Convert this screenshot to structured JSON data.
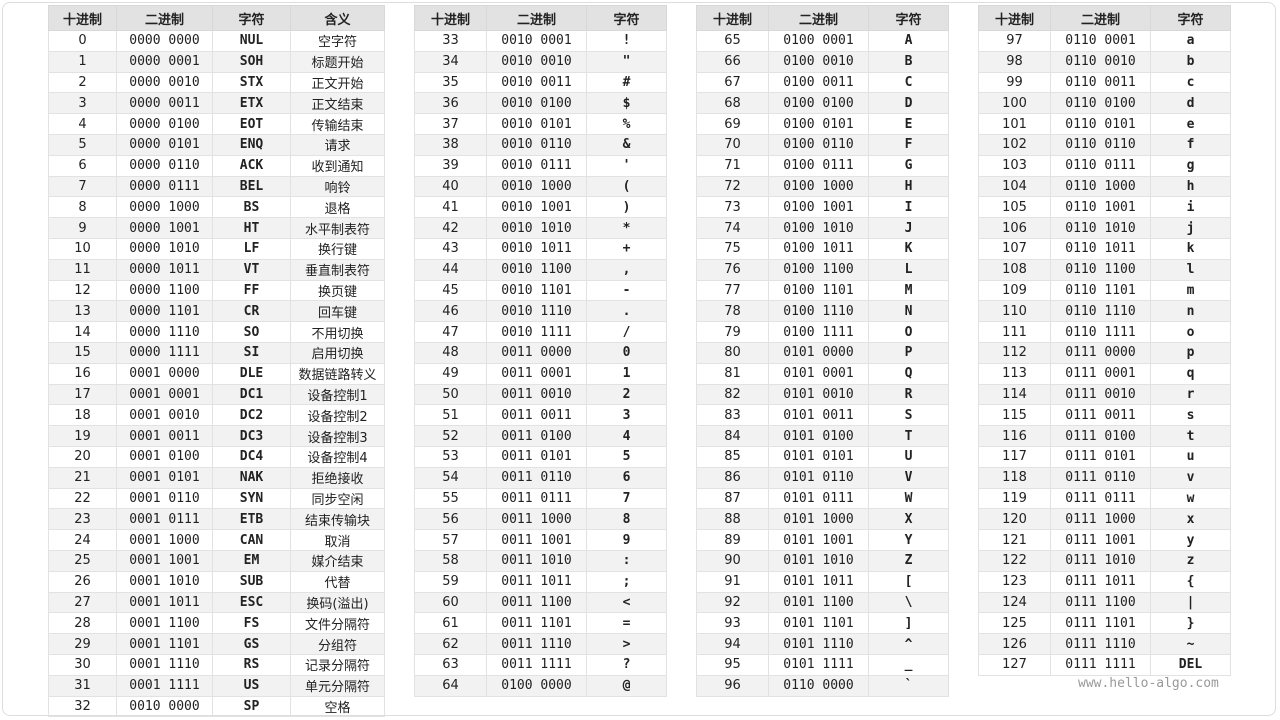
{
  "tables": [
    {
      "headers": [
        "十进制",
        "二进制",
        "字符",
        "含义"
      ],
      "rows": [
        [
          0,
          "0000 0000",
          "NUL",
          "空字符"
        ],
        [
          1,
          "0000 0001",
          "SOH",
          "标题开始"
        ],
        [
          2,
          "0000 0010",
          "STX",
          "正文开始"
        ],
        [
          3,
          "0000 0011",
          "ETX",
          "正文结束"
        ],
        [
          4,
          "0000 0100",
          "EOT",
          "传输结束"
        ],
        [
          5,
          "0000 0101",
          "ENQ",
          "请求"
        ],
        [
          6,
          "0000 0110",
          "ACK",
          "收到通知"
        ],
        [
          7,
          "0000 0111",
          "BEL",
          "响铃"
        ],
        [
          8,
          "0000 1000",
          "BS",
          "退格"
        ],
        [
          9,
          "0000 1001",
          "HT",
          "水平制表符"
        ],
        [
          10,
          "0000 1010",
          "LF",
          "换行键"
        ],
        [
          11,
          "0000 1011",
          "VT",
          "垂直制表符"
        ],
        [
          12,
          "0000 1100",
          "FF",
          "换页键"
        ],
        [
          13,
          "0000 1101",
          "CR",
          "回车键"
        ],
        [
          14,
          "0000 1110",
          "SO",
          "不用切换"
        ],
        [
          15,
          "0000 1111",
          "SI",
          "启用切换"
        ],
        [
          16,
          "0001 0000",
          "DLE",
          "数据链路转义"
        ],
        [
          17,
          "0001 0001",
          "DC1",
          "设备控制1"
        ],
        [
          18,
          "0001 0010",
          "DC2",
          "设备控制2"
        ],
        [
          19,
          "0001 0011",
          "DC3",
          "设备控制3"
        ],
        [
          20,
          "0001 0100",
          "DC4",
          "设备控制4"
        ],
        [
          21,
          "0001 0101",
          "NAK",
          "拒绝接收"
        ],
        [
          22,
          "0001 0110",
          "SYN",
          "同步空闲"
        ],
        [
          23,
          "0001 0111",
          "ETB",
          "结束传输块"
        ],
        [
          24,
          "0001 1000",
          "CAN",
          "取消"
        ],
        [
          25,
          "0001 1001",
          "EM",
          "媒介结束"
        ],
        [
          26,
          "0001 1010",
          "SUB",
          "代替"
        ],
        [
          27,
          "0001 1011",
          "ESC",
          "换码(溢出)"
        ],
        [
          28,
          "0001 1100",
          "FS",
          "文件分隔符"
        ],
        [
          29,
          "0001 1101",
          "GS",
          "分组符"
        ],
        [
          30,
          "0001 1110",
          "RS",
          "记录分隔符"
        ],
        [
          31,
          "0001 1111",
          "US",
          "单元分隔符"
        ],
        [
          32,
          "0010 0000",
          "SP",
          "空格"
        ]
      ]
    },
    {
      "headers": [
        "十进制",
        "二进制",
        "字符"
      ],
      "rows": [
        [
          33,
          "0010 0001",
          "!"
        ],
        [
          34,
          "0010 0010",
          "\""
        ],
        [
          35,
          "0010 0011",
          "#"
        ],
        [
          36,
          "0010 0100",
          "$"
        ],
        [
          37,
          "0010 0101",
          "%"
        ],
        [
          38,
          "0010 0110",
          "&"
        ],
        [
          39,
          "0010 0111",
          "'"
        ],
        [
          40,
          "0010 1000",
          "("
        ],
        [
          41,
          "0010 1001",
          ")"
        ],
        [
          42,
          "0010 1010",
          "*"
        ],
        [
          43,
          "0010 1011",
          "+"
        ],
        [
          44,
          "0010 1100",
          ","
        ],
        [
          45,
          "0010 1101",
          "-"
        ],
        [
          46,
          "0010 1110",
          "."
        ],
        [
          47,
          "0010 1111",
          "/"
        ],
        [
          48,
          "0011 0000",
          "0"
        ],
        [
          49,
          "0011 0001",
          "1"
        ],
        [
          50,
          "0011 0010",
          "2"
        ],
        [
          51,
          "0011 0011",
          "3"
        ],
        [
          52,
          "0011 0100",
          "4"
        ],
        [
          53,
          "0011 0101",
          "5"
        ],
        [
          54,
          "0011 0110",
          "6"
        ],
        [
          55,
          "0011 0111",
          "7"
        ],
        [
          56,
          "0011 1000",
          "8"
        ],
        [
          57,
          "0011 1001",
          "9"
        ],
        [
          58,
          "0011 1010",
          ":"
        ],
        [
          59,
          "0011 1011",
          ";"
        ],
        [
          60,
          "0011 1100",
          "<"
        ],
        [
          61,
          "0011 1101",
          "="
        ],
        [
          62,
          "0011 1110",
          ">"
        ],
        [
          63,
          "0011 1111",
          "?"
        ],
        [
          64,
          "0100 0000",
          "@"
        ]
      ]
    },
    {
      "headers": [
        "十进制",
        "二进制",
        "字符"
      ],
      "rows": [
        [
          65,
          "0100 0001",
          "A"
        ],
        [
          66,
          "0100 0010",
          "B"
        ],
        [
          67,
          "0100 0011",
          "C"
        ],
        [
          68,
          "0100 0100",
          "D"
        ],
        [
          69,
          "0100 0101",
          "E"
        ],
        [
          70,
          "0100 0110",
          "F"
        ],
        [
          71,
          "0100 0111",
          "G"
        ],
        [
          72,
          "0100 1000",
          "H"
        ],
        [
          73,
          "0100 1001",
          "I"
        ],
        [
          74,
          "0100 1010",
          "J"
        ],
        [
          75,
          "0100 1011",
          "K"
        ],
        [
          76,
          "0100 1100",
          "L"
        ],
        [
          77,
          "0100 1101",
          "M"
        ],
        [
          78,
          "0100 1110",
          "N"
        ],
        [
          79,
          "0100 1111",
          "O"
        ],
        [
          80,
          "0101 0000",
          "P"
        ],
        [
          81,
          "0101 0001",
          "Q"
        ],
        [
          82,
          "0101 0010",
          "R"
        ],
        [
          83,
          "0101 0011",
          "S"
        ],
        [
          84,
          "0101 0100",
          "T"
        ],
        [
          85,
          "0101 0101",
          "U"
        ],
        [
          86,
          "0101 0110",
          "V"
        ],
        [
          87,
          "0101 0111",
          "W"
        ],
        [
          88,
          "0101 1000",
          "X"
        ],
        [
          89,
          "0101 1001",
          "Y"
        ],
        [
          90,
          "0101 1010",
          "Z"
        ],
        [
          91,
          "0101 1011",
          "["
        ],
        [
          92,
          "0101 1100",
          "\\"
        ],
        [
          93,
          "0101 1101",
          "]"
        ],
        [
          94,
          "0101 1110",
          "^"
        ],
        [
          95,
          "0101 1111",
          "_"
        ],
        [
          96,
          "0110 0000",
          "`"
        ]
      ]
    },
    {
      "headers": [
        "十进制",
        "二进制",
        "字符"
      ],
      "rows": [
        [
          97,
          "0110 0001",
          "a"
        ],
        [
          98,
          "0110 0010",
          "b"
        ],
        [
          99,
          "0110 0011",
          "c"
        ],
        [
          100,
          "0110 0100",
          "d"
        ],
        [
          101,
          "0110 0101",
          "e"
        ],
        [
          102,
          "0110 0110",
          "f"
        ],
        [
          103,
          "0110 0111",
          "g"
        ],
        [
          104,
          "0110 1000",
          "h"
        ],
        [
          105,
          "0110 1001",
          "i"
        ],
        [
          106,
          "0110 1010",
          "j"
        ],
        [
          107,
          "0110 1011",
          "k"
        ],
        [
          108,
          "0110 1100",
          "l"
        ],
        [
          109,
          "0110 1101",
          "m"
        ],
        [
          110,
          "0110 1110",
          "n"
        ],
        [
          111,
          "0110 1111",
          "o"
        ],
        [
          112,
          "0111 0000",
          "p"
        ],
        [
          113,
          "0111 0001",
          "q"
        ],
        [
          114,
          "0111 0010",
          "r"
        ],
        [
          115,
          "0111 0011",
          "s"
        ],
        [
          116,
          "0111 0100",
          "t"
        ],
        [
          117,
          "0111 0101",
          "u"
        ],
        [
          118,
          "0111 0110",
          "v"
        ],
        [
          119,
          "0111 0111",
          "w"
        ],
        [
          120,
          "0111 1000",
          "x"
        ],
        [
          121,
          "0111 1001",
          "y"
        ],
        [
          122,
          "0111 1010",
          "z"
        ],
        [
          123,
          "0111 1011",
          "{"
        ],
        [
          124,
          "0111 1100",
          "|"
        ],
        [
          125,
          "0111 1101",
          "}"
        ],
        [
          126,
          "0111 1110",
          "~"
        ],
        [
          127,
          "0111 1111",
          "DEL"
        ]
      ]
    }
  ],
  "watermark": "www.hello-algo.com"
}
